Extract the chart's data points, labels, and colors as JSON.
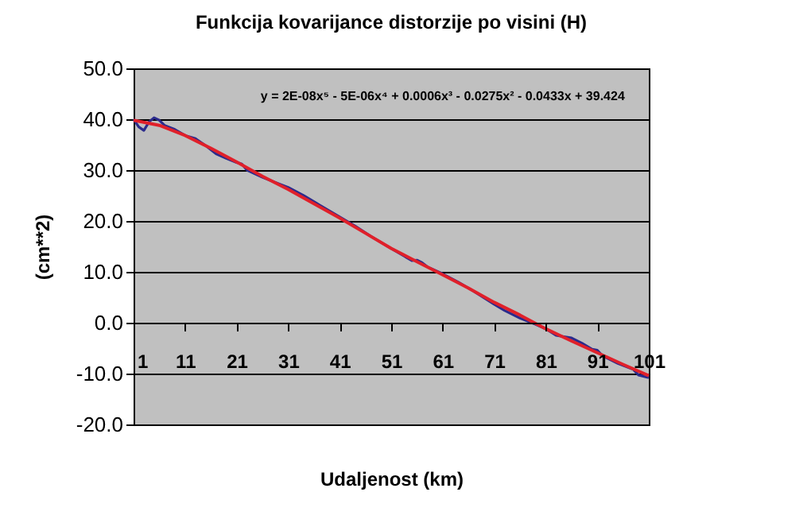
{
  "chart_data": {
    "type": "line",
    "title": "Funkcija kovarijance distorzije po visini (H)",
    "xlabel": "Udaljenost (km)",
    "ylabel": "(cm**2)",
    "annotations": [
      "y = 2E-08x⁵ - 5E-06x⁴ + 0.0006x³ - 0.0275x² - 0.0433x + 39.424"
    ],
    "xlim": [
      1,
      101
    ],
    "xticks": [
      1,
      11,
      21,
      31,
      41,
      51,
      61,
      71,
      81,
      91,
      101
    ],
    "ylim": [
      -20,
      50
    ],
    "yticks": [
      {
        "value": -20,
        "label": "-20.0"
      },
      {
        "value": -10,
        "label": "-10.0"
      },
      {
        "value": 0,
        "label": "0.0"
      },
      {
        "value": 10,
        "label": "10.0"
      },
      {
        "value": 20,
        "label": "20.0"
      },
      {
        "value": 30,
        "label": "30.0"
      },
      {
        "value": 40,
        "label": "40.0"
      },
      {
        "value": 50,
        "label": "50.0"
      }
    ],
    "grid": "y",
    "marker": "none",
    "line_style": "solid",
    "series": [
      {
        "color": "#2b2b8c",
        "x": [
          1,
          2,
          3,
          4,
          5,
          6,
          7,
          9,
          11,
          13,
          15,
          17,
          19,
          21,
          22,
          23,
          26,
          29,
          31,
          34,
          37,
          41,
          44,
          47,
          51,
          54,
          55,
          56,
          57,
          58,
          61,
          64,
          67,
          71,
          73,
          76,
          79,
          81,
          83,
          86,
          88,
          90,
          91,
          92,
          95,
          98,
          99,
          101
        ],
        "values": [
          40,
          38.5,
          37.8,
          39.5,
          40.3,
          39.8,
          38.8,
          38,
          36.8,
          36.2,
          34.8,
          33.2,
          32.3,
          31.5,
          31.2,
          30,
          28.6,
          27.4,
          26.6,
          25,
          23.2,
          20.8,
          19,
          17,
          14.6,
          12.8,
          12.2,
          12.3,
          11.8,
          11,
          9.6,
          8,
          6.2,
          3.6,
          2.4,
          0.9,
          -0.3,
          -1.2,
          -2.5,
          -3,
          -4,
          -5.2,
          -5.4,
          -6.5,
          -8,
          -9.2,
          -10.3,
          -10.8
        ]
      },
      {
        "color": "#e0202a",
        "x": [
          1,
          6,
          11,
          16,
          21,
          26,
          31,
          36,
          41,
          46,
          51,
          56,
          61,
          66,
          71,
          76,
          81,
          86,
          91,
          96,
          101
        ],
        "values": [
          39.8,
          38.8,
          36.8,
          34.3,
          31.6,
          28.8,
          26.2,
          23.4,
          20.6,
          17.6,
          14.6,
          12,
          9.4,
          6.8,
          4,
          1.5,
          -1.2,
          -3.6,
          -5.9,
          -8.2,
          -10.4
        ]
      }
    ]
  }
}
